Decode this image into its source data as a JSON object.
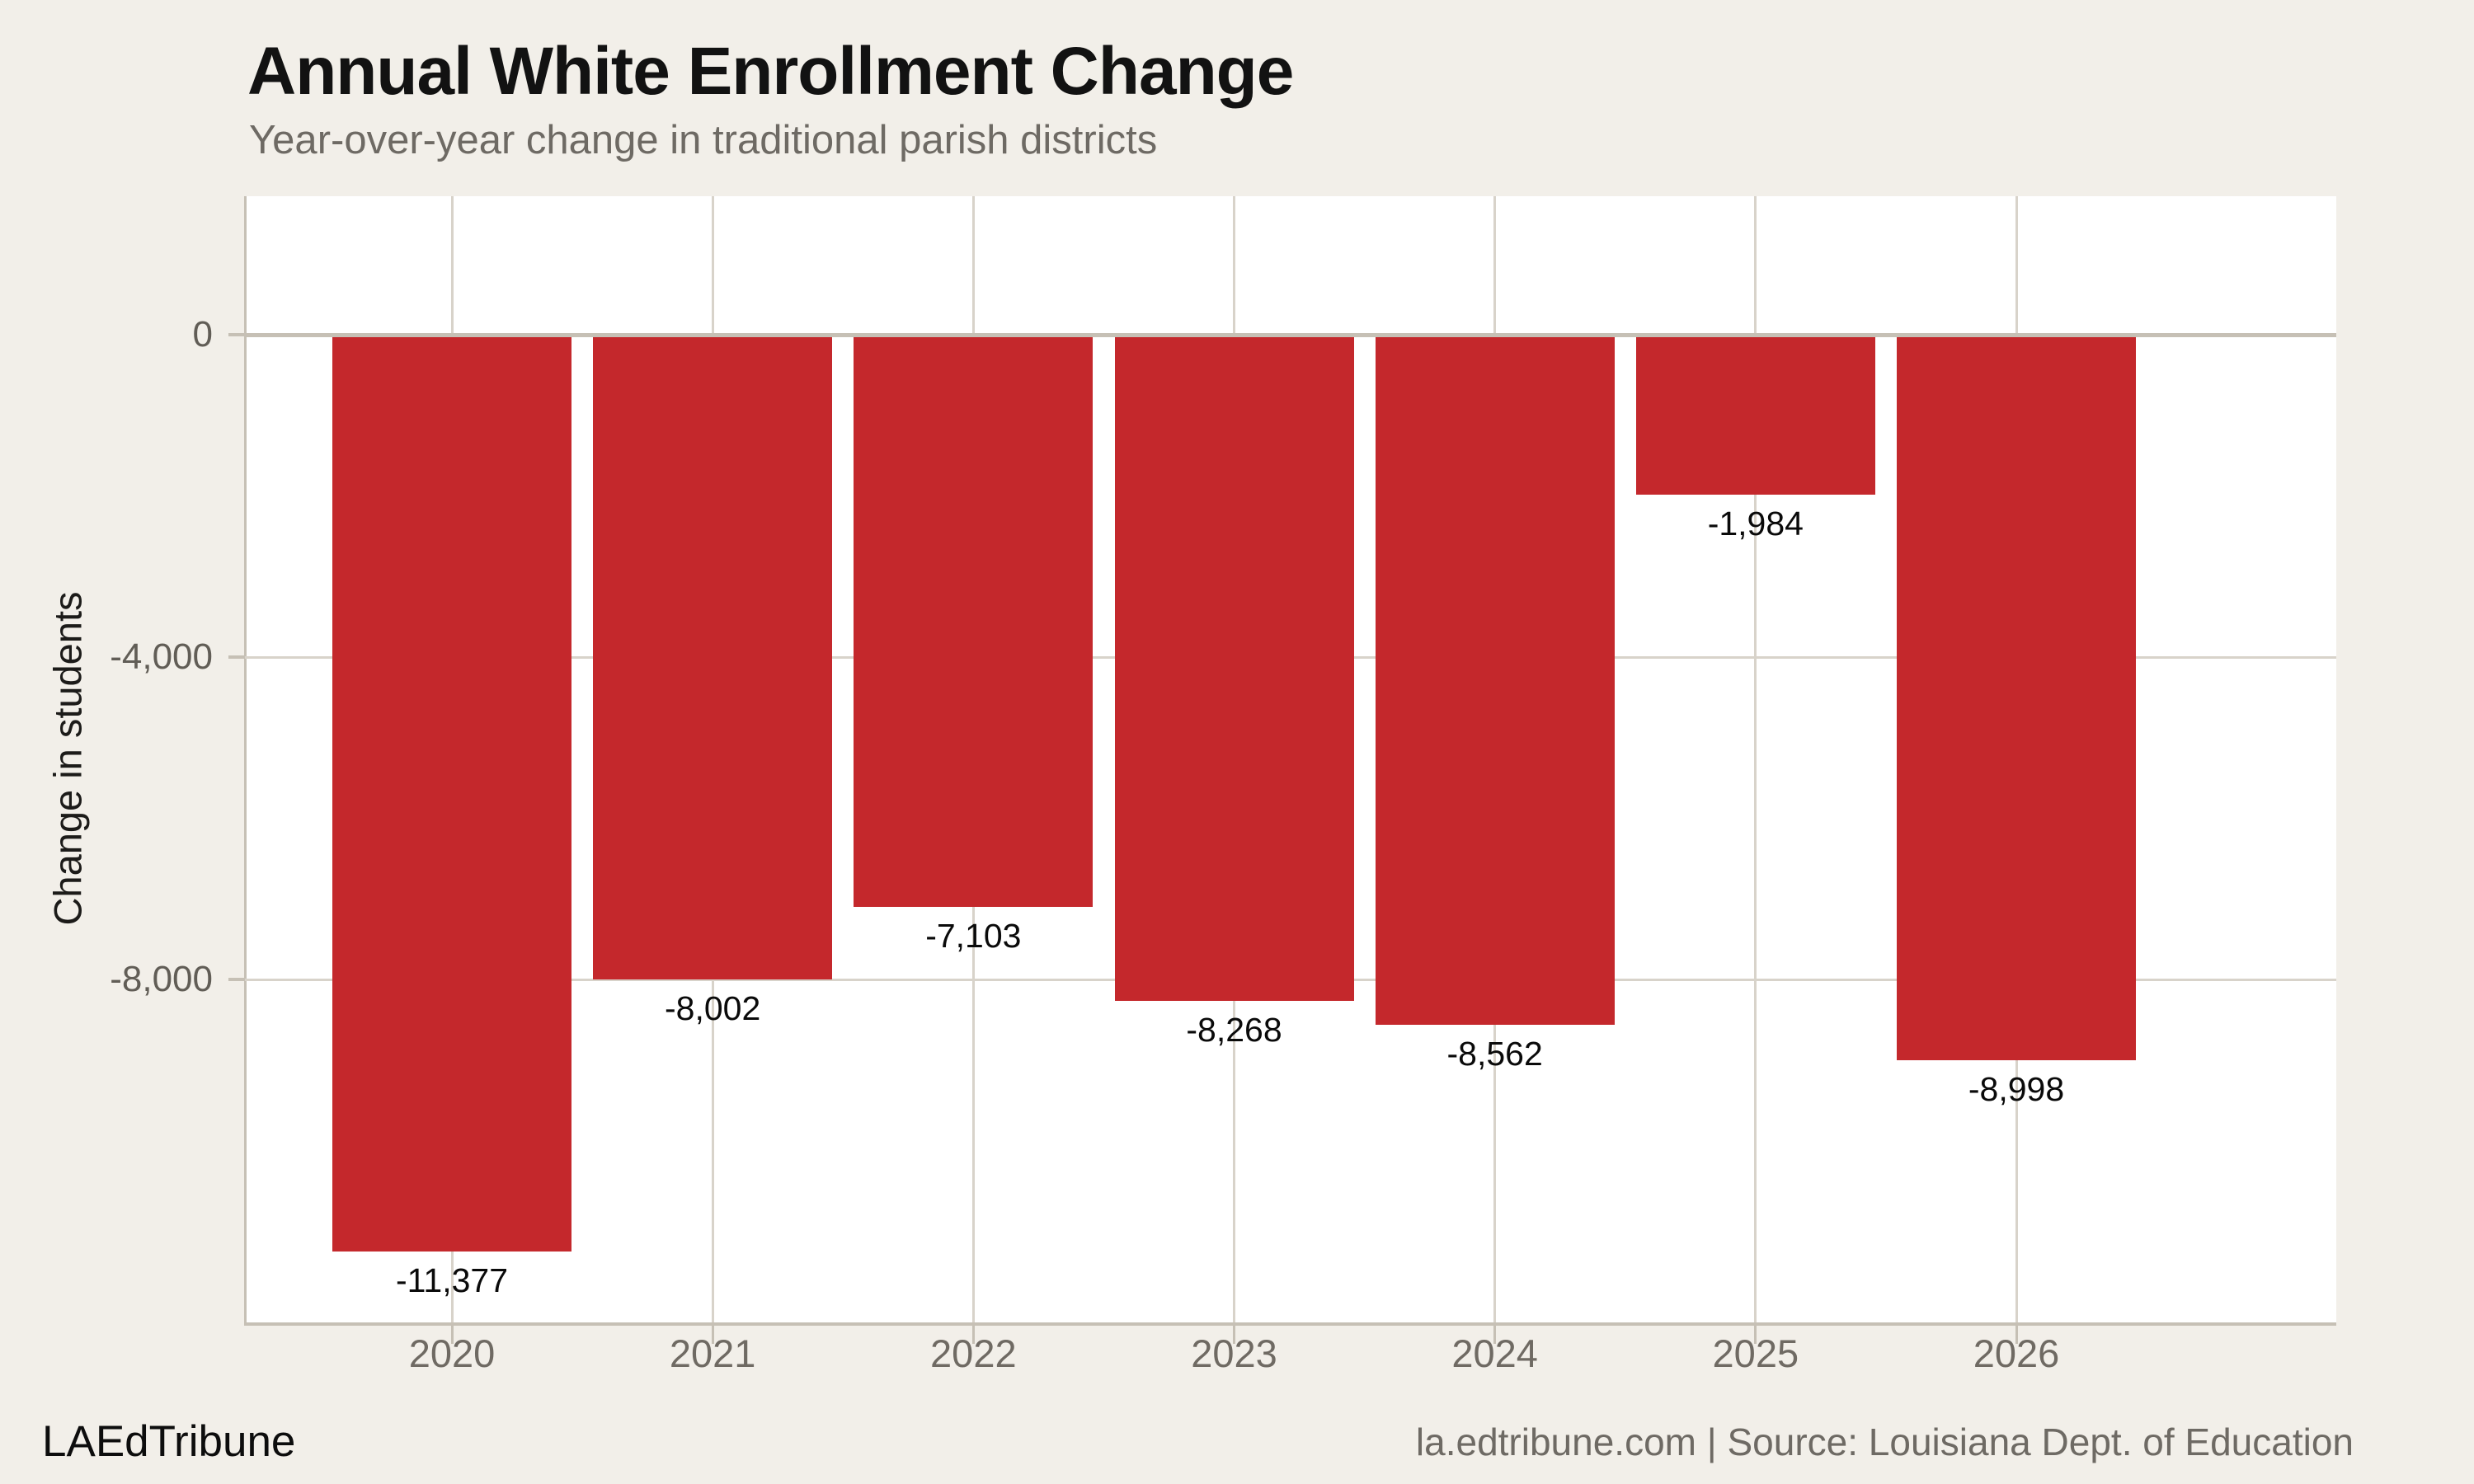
{
  "title": "Annual White Enrollment Change",
  "subtitle": "Year-over-year change in traditional parish districts",
  "footer": {
    "brand": "LAEdTribune",
    "attribution": "la.edtribune.com | Source: Louisiana Dept. of Education"
  },
  "colors": {
    "background": "#f2efe9",
    "plot_background": "#ffffff",
    "bar": "#c4282c",
    "axis_line": "#c6c0b5",
    "gridline": "#d8d3ca",
    "muted_text": "#6e6a64",
    "value_label_text": "#0a0a0a"
  },
  "chart_data": {
    "type": "bar",
    "title": "Annual White Enrollment Change",
    "subtitle": "Year-over-year change in traditional parish districts",
    "categories": [
      "2020",
      "2021",
      "2022",
      "2023",
      "2024",
      "2025",
      "2026"
    ],
    "values": [
      -11377,
      -8002,
      -7103,
      -8268,
      -8562,
      -1984,
      -8998
    ],
    "value_labels": [
      "-11,377",
      "-8,002",
      "-7,103",
      "-8,268",
      "-8,562",
      "-1,984",
      "-8,998"
    ],
    "xlabel": "",
    "ylabel": "Change in students",
    "yticks": [
      {
        "value": 0,
        "label": "0"
      },
      {
        "value": -4000,
        "label": "-4,000"
      },
      {
        "value": -8000,
        "label": "-8,000"
      }
    ],
    "ylim": [
      -12300,
      1720
    ],
    "bar_color": "#c4282c",
    "grid": "on",
    "legend": "none"
  }
}
